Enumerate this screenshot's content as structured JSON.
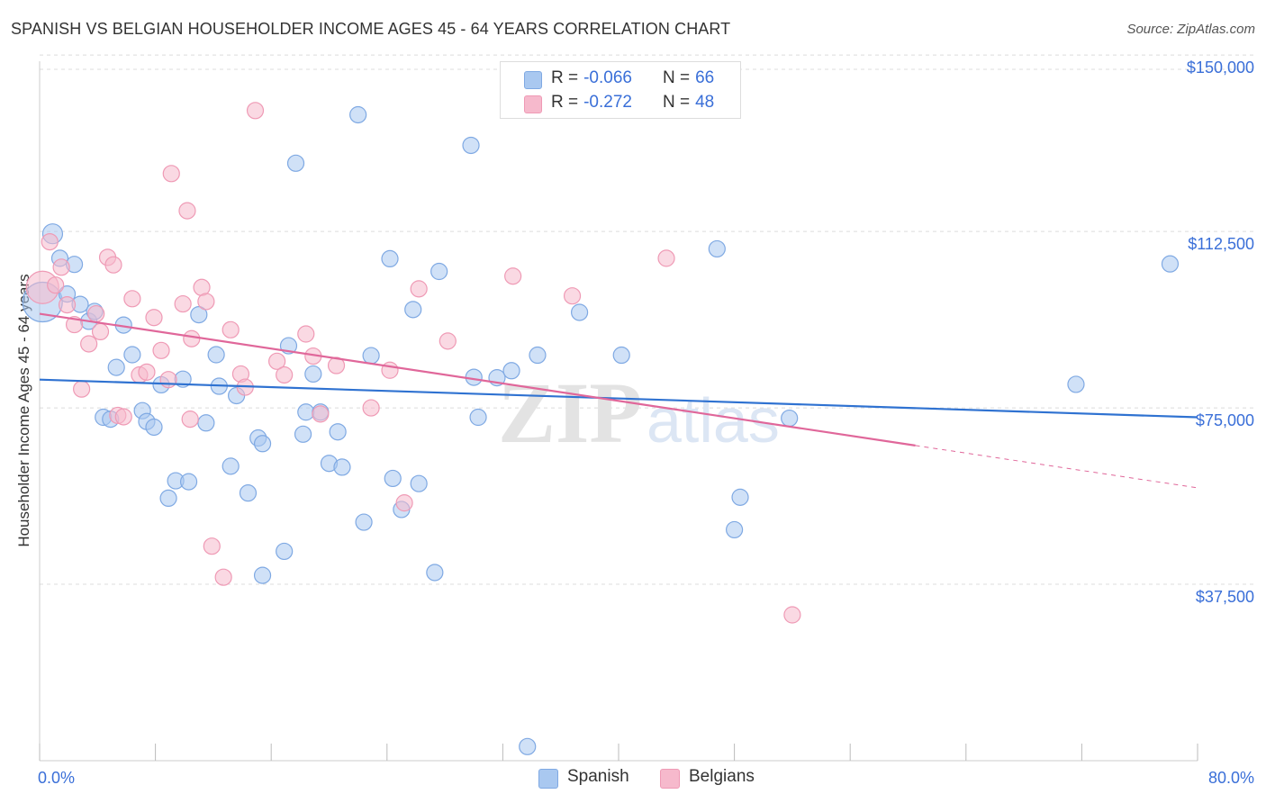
{
  "header": {
    "title": "SPANISH VS BELGIAN HOUSEHOLDER INCOME AGES 45 - 64 YEARS CORRELATION CHART",
    "source": "Source: ZipAtlas.com"
  },
  "watermark": {
    "zip": "ZIP",
    "atlas": "atlas"
  },
  "legend_top": [
    {
      "r_label": "R =",
      "r_value": "-0.066",
      "n_label": "N =",
      "n_value": "66",
      "color": "#a9c8f0"
    },
    {
      "r_label": "R =",
      "r_value": "-0.272",
      "n_label": "N =",
      "n_value": "48",
      "color": "#f6b9cc"
    }
  ],
  "legend_bottom": [
    {
      "label": "Spanish",
      "color": "#a9c8f0"
    },
    {
      "label": "Belgians",
      "color": "#f6b9cc"
    }
  ],
  "colors": {
    "spanish_fill": "#a9c8f0",
    "spanish_stroke": "#7fa9e3",
    "spanish_line": "#2f72d1",
    "belgian_fill": "#f6b9cc",
    "belgian_stroke": "#ef9ab5",
    "belgian_line": "#e0679a",
    "tick_label": "#3a6fd8",
    "grid": "#dcdcdc"
  },
  "chart_data": {
    "type": "scatter",
    "title": "SPANISH VS BELGIAN HOUSEHOLDER INCOME AGES 45 - 64 YEARS CORRELATION CHART",
    "xlabel": "",
    "ylabel": "Householder Income Ages 45 - 64 years",
    "xlim": [
      0,
      80
    ],
    "ylim": [
      0,
      155000
    ],
    "x_tick_labels": [
      "0.0%",
      "80.0%"
    ],
    "y_ticks": [
      37500,
      75000,
      112500,
      150000
    ],
    "y_tick_labels": [
      "$37,500",
      "$75,000",
      "$112,500",
      "$150,000"
    ],
    "grid": true,
    "legend_position": "top-center",
    "series": [
      {
        "name": "Spanish",
        "r": -0.066,
        "n": 66,
        "trend": {
          "x0": 0,
          "y0": 81000,
          "x1": 80,
          "y1": 73000
        },
        "points": [
          [
            0.2,
            97500,
            22
          ],
          [
            0.9,
            112000,
            11
          ],
          [
            1.4,
            106800,
            9
          ],
          [
            2.4,
            105500,
            9
          ],
          [
            1.9,
            99200,
            9
          ],
          [
            2.8,
            97000,
            9
          ],
          [
            3.4,
            93400,
            9
          ],
          [
            3.8,
            95500,
            9
          ],
          [
            5.8,
            92600,
            9
          ],
          [
            5.3,
            83600,
            9
          ],
          [
            6.4,
            86300,
            9
          ],
          [
            7.1,
            74400,
            9
          ],
          [
            7.4,
            72100,
            9
          ],
          [
            7.9,
            70900,
            9
          ],
          [
            8.4,
            79900,
            9
          ],
          [
            4.4,
            73000,
            9
          ],
          [
            4.9,
            72600,
            9
          ],
          [
            8.9,
            55800,
            9
          ],
          [
            9.4,
            59500,
            9
          ],
          [
            9.9,
            81100,
            9
          ],
          [
            10.3,
            59300,
            9
          ],
          [
            11.0,
            94800,
            9
          ],
          [
            11.5,
            71800,
            9
          ],
          [
            12.2,
            86300,
            9
          ],
          [
            12.4,
            79600,
            9
          ],
          [
            13.2,
            62600,
            9
          ],
          [
            13.6,
            77600,
            9
          ],
          [
            14.4,
            56900,
            9
          ],
          [
            15.1,
            68600,
            9
          ],
          [
            15.4,
            67400,
            9
          ],
          [
            15.4,
            39400,
            9
          ],
          [
            16.9,
            44500,
            9
          ],
          [
            17.2,
            88200,
            9
          ],
          [
            17.7,
            127000,
            9
          ],
          [
            18.2,
            69400,
            9
          ],
          [
            18.4,
            74100,
            9
          ],
          [
            18.9,
            82200,
            9
          ],
          [
            19.4,
            74100,
            9
          ],
          [
            20.0,
            63200,
            9
          ],
          [
            20.6,
            69900,
            9
          ],
          [
            20.9,
            62400,
            9
          ],
          [
            22.0,
            137300,
            9
          ],
          [
            22.4,
            50700,
            9
          ],
          [
            22.9,
            86100,
            9
          ],
          [
            24.2,
            106700,
            9
          ],
          [
            24.4,
            60000,
            9
          ],
          [
            25.0,
            53400,
            9
          ],
          [
            25.8,
            95900,
            9
          ],
          [
            26.2,
            58900,
            9
          ],
          [
            27.3,
            40000,
            9
          ],
          [
            27.6,
            104000,
            9
          ],
          [
            29.8,
            130800,
            9
          ],
          [
            30.0,
            81500,
            9
          ],
          [
            30.3,
            73000,
            9
          ],
          [
            31.6,
            81400,
            9
          ],
          [
            32.6,
            82900,
            9
          ],
          [
            33.7,
            3000,
            9
          ],
          [
            34.4,
            86200,
            9
          ],
          [
            37.3,
            95300,
            9
          ],
          [
            40.2,
            86200,
            9
          ],
          [
            46.8,
            108800,
            9
          ],
          [
            48.0,
            49100,
            9
          ],
          [
            48.4,
            56000,
            9
          ],
          [
            51.8,
            72800,
            9
          ],
          [
            71.6,
            80000,
            9
          ],
          [
            78.1,
            105600,
            9
          ]
        ]
      },
      {
        "name": "Belgians",
        "r": -0.272,
        "n": 48,
        "trend": {
          "x0": 0,
          "y0": 95000,
          "x1": 60.5,
          "y1": 67000,
          "dash_to_x": 80,
          "dash_to_y": 58000
        },
        "points": [
          [
            0.2,
            100600,
            18
          ],
          [
            0.7,
            110300,
            9
          ],
          [
            1.1,
            101100,
            9
          ],
          [
            1.5,
            104900,
            9
          ],
          [
            1.9,
            96900,
            9
          ],
          [
            2.4,
            92700,
            9
          ],
          [
            2.9,
            79000,
            9
          ],
          [
            3.4,
            88600,
            9
          ],
          [
            3.9,
            95000,
            9
          ],
          [
            4.2,
            91200,
            9
          ],
          [
            4.7,
            107000,
            9
          ],
          [
            5.1,
            105400,
            9
          ],
          [
            5.4,
            73400,
            9
          ],
          [
            5.8,
            73100,
            9
          ],
          [
            6.4,
            98200,
            9
          ],
          [
            6.9,
            82000,
            9
          ],
          [
            7.4,
            82600,
            9
          ],
          [
            7.9,
            94200,
            9
          ],
          [
            8.4,
            87200,
            9
          ],
          [
            8.9,
            81000,
            9
          ],
          [
            9.1,
            124800,
            9
          ],
          [
            9.9,
            97100,
            9
          ],
          [
            10.2,
            116900,
            9
          ],
          [
            10.5,
            89700,
            9
          ],
          [
            10.4,
            72600,
            9
          ],
          [
            11.2,
            100600,
            9
          ],
          [
            11.5,
            97600,
            9
          ],
          [
            11.9,
            45600,
            9
          ],
          [
            12.7,
            39000,
            9
          ],
          [
            13.2,
            91600,
            9
          ],
          [
            13.9,
            82200,
            9
          ],
          [
            14.2,
            79400,
            9
          ],
          [
            14.9,
            138200,
            9
          ],
          [
            16.4,
            84900,
            9
          ],
          [
            16.9,
            82000,
            9
          ],
          [
            18.4,
            90700,
            9
          ],
          [
            18.9,
            86000,
            9
          ],
          [
            19.4,
            73700,
            9
          ],
          [
            20.5,
            84000,
            9
          ],
          [
            22.9,
            75000,
            9
          ],
          [
            24.2,
            83000,
            9
          ],
          [
            25.2,
            54800,
            9
          ],
          [
            26.2,
            100300,
            9
          ],
          [
            28.2,
            89200,
            9
          ],
          [
            32.7,
            103000,
            9
          ],
          [
            36.8,
            98800,
            9
          ],
          [
            43.3,
            106800,
            9
          ],
          [
            52.0,
            31000,
            9
          ]
        ]
      }
    ]
  }
}
